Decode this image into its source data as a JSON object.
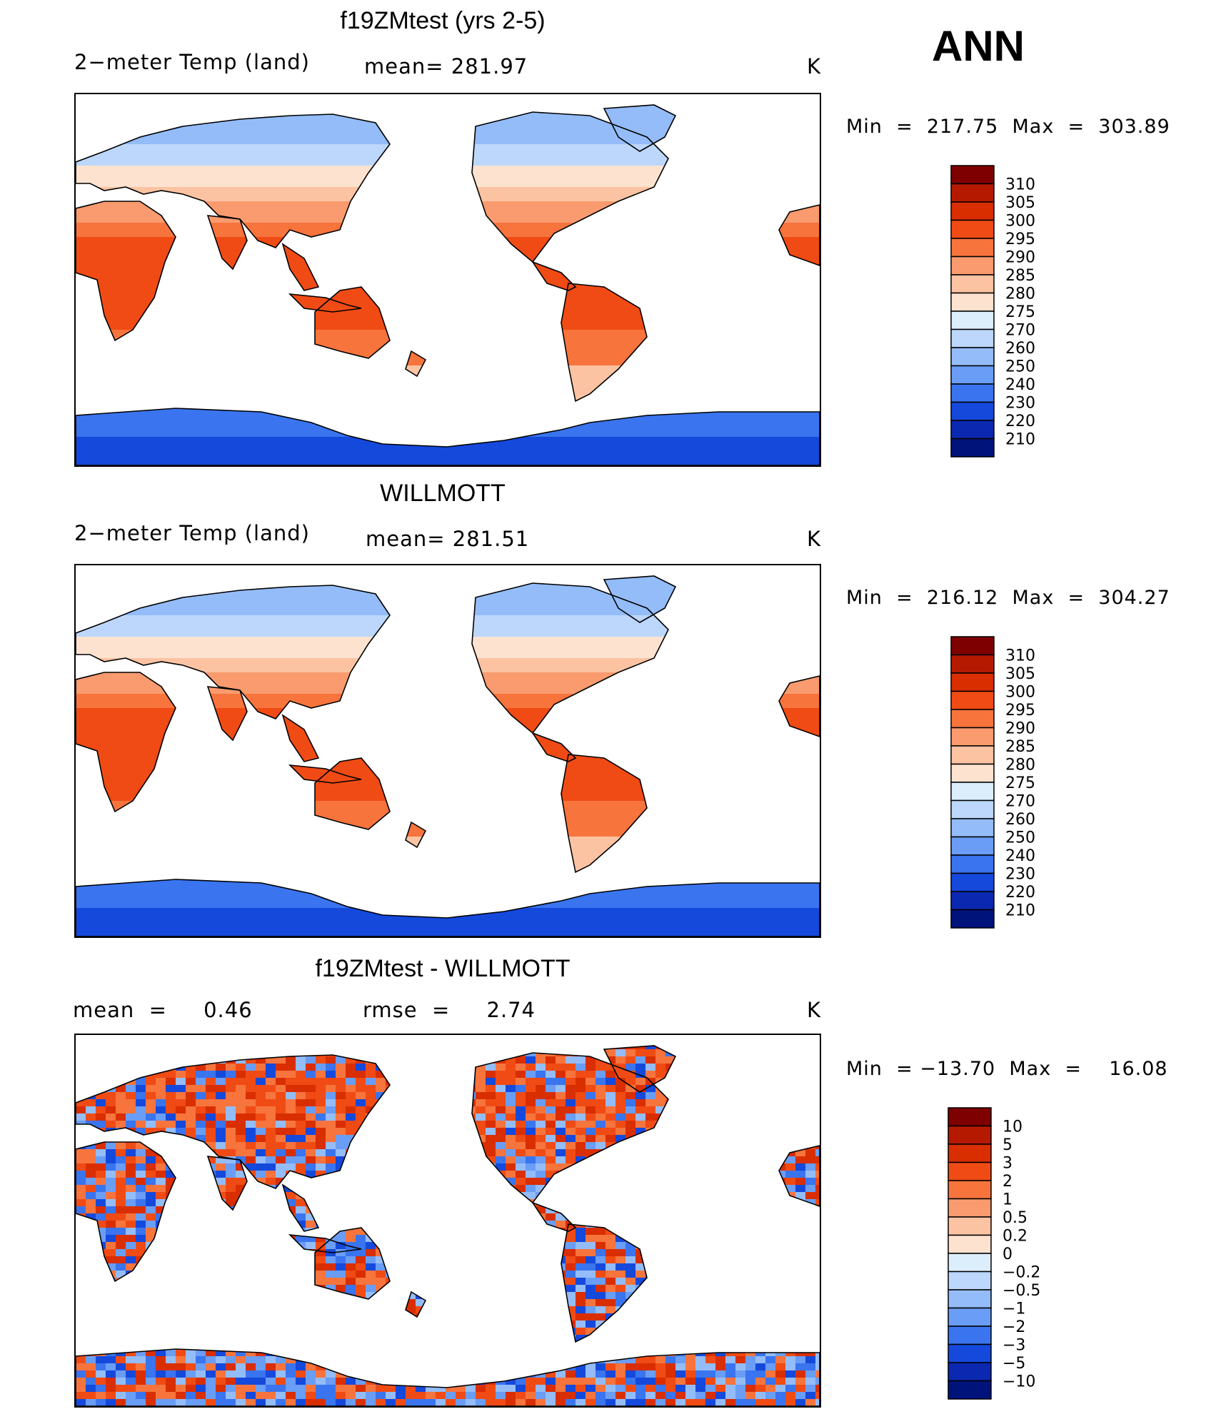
{
  "season": "ANN",
  "unit": "K",
  "panels": [
    {
      "id": "model",
      "title": "f19ZMtest (yrs 2-5)",
      "left_text": "2−meter Temp (land)",
      "stat_text": "mean= 281.97",
      "unit_text": "K",
      "minmax_text": "Min  =  217.75  Max  =  303.89",
      "palette": "abs"
    },
    {
      "id": "obs",
      "title": "WILLMOTT",
      "left_text": "2−meter Temp (land)",
      "stat_text": "mean= 281.51",
      "unit_text": "K",
      "minmax_text": "Min  =  216.12  Max  =  304.27",
      "palette": "abs"
    },
    {
      "id": "diff",
      "title": "f19ZMtest - WILLMOTT",
      "left_text": "mean  =     0.46",
      "stat_text": "rmse  =     2.74",
      "unit_text": "K",
      "minmax_text": "Min  = −13.70  Max  =    16.08",
      "palette": "diff"
    }
  ],
  "colorbars": {
    "abs": {
      "labels": [
        "310",
        "305",
        "300",
        "295",
        "290",
        "285",
        "280",
        "275",
        "270",
        "260",
        "250",
        "240",
        "230",
        "220",
        "210"
      ],
      "colors": [
        "#7f0000",
        "#b51a00",
        "#d92e00",
        "#f04b14",
        "#f7743d",
        "#f99b6e",
        "#fcc3a3",
        "#fde3cf",
        "#dceefc",
        "#bcd7fb",
        "#94bcf9",
        "#6a9df5",
        "#3a74ee",
        "#1549dc",
        "#0a28b0",
        "#00137a"
      ]
    },
    "diff": {
      "labels": [
        "10",
        "5",
        "3",
        "2",
        "1",
        "0.5",
        "0.2",
        "0",
        "−0.2",
        "−0.5",
        "−1",
        "−2",
        "−3",
        "−5",
        "−10"
      ],
      "colors": [
        "#7f0000",
        "#b51a00",
        "#d92e00",
        "#f04b14",
        "#f7743d",
        "#f99b6e",
        "#fcc3a3",
        "#fde3cf",
        "#dceefc",
        "#bcd7fb",
        "#94bcf9",
        "#6a9df5",
        "#3a74ee",
        "#1549dc",
        "#0a28b0",
        "#00137a"
      ]
    }
  }
}
